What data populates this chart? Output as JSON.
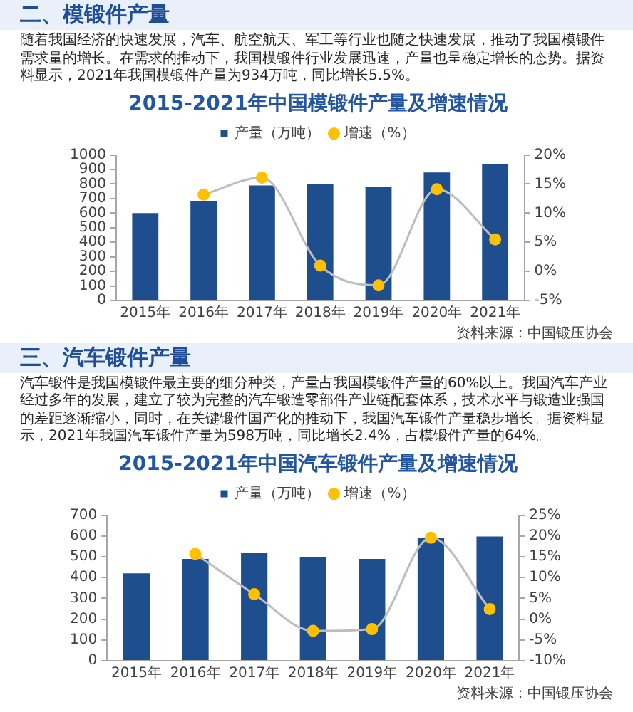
{
  "chart_data": [
    {
      "type": "bar",
      "title": "2015-2021年中国模锻件产量及增速情况",
      "annotations": [
        "二、模锻件产量",
        "随着我国经济的快速发展，汽车、航空航天、军工等行业也随之快速发展，推动了我国模锻件需求量的增长。在需求的推动下，我国模锻件行业发展迅速，产量也呈稳定增长的态势。据资料显示，2021年我国模锻件产量为934万吨，同比增长5.5%。",
        "资料来源：中国锻压协会"
      ],
      "categories": [
        "2015年",
        "2016年",
        "2017年",
        "2018年",
        "2019年",
        "2020年",
        "2021年"
      ],
      "series": [
        {
          "name": "产量（万吨）",
          "color": "#1f4e8e",
          "values": [
            600,
            680,
            790,
            800,
            780,
            880,
            934
          ]
        },
        {
          "name": "增速（%）",
          "type": "line",
          "axis": "y2",
          "color": "#ffc000",
          "values": [
            null,
            13.2,
            16.1,
            1.0,
            -2.4,
            14.1,
            5.5
          ]
        }
      ],
      "ylim": [
        0,
        1000
      ],
      "yticks": [
        0,
        100,
        200,
        300,
        400,
        500,
        600,
        700,
        800,
        900,
        1000
      ],
      "y2lim": [
        -5,
        20
      ],
      "y2ticks": [
        {
          "value": -5,
          "label": "-5%"
        },
        {
          "value": 0,
          "label": "0%"
        },
        {
          "value": 5,
          "label": "5%"
        },
        {
          "value": 10,
          "label": "10%"
        },
        {
          "value": 15,
          "label": "15%"
        },
        {
          "value": 20,
          "label": "20%"
        }
      ],
      "grid": false,
      "legend": "top",
      "marker": "circle"
    },
    {
      "type": "bar",
      "title": "2015-2021年中国汽车锻件产量及增速情况",
      "annotations": [
        "三、汽车锻件产量",
        "汽车锻件是我国模锻件最主要的细分种类，产量占我国模锻件产量的60%以上。我国汽车产业经过多年的发展，建立了较为完整的汽车锻造零部件产业链配套体系，技术水平与锻造业强国的差距逐渐缩小，同时，在关键锻件国产化的推动下，我国汽车锻件产量稳步增长。据资料显示，2021年我国汽车锻件产量为598万吨，同比增长2.4%，占模锻件产量的64%。",
        "资料来源：中国锻压协会"
      ],
      "categories": [
        "2015年",
        "2016年",
        "2017年",
        "2018年",
        "2019年",
        "2020年",
        "2021年"
      ],
      "series": [
        {
          "name": "产量（万吨）",
          "color": "#1f4e8e",
          "values": [
            420,
            490,
            520,
            500,
            490,
            590,
            598
          ]
        },
        {
          "name": "增速（%）",
          "type": "line",
          "axis": "y2",
          "color": "#ffc000",
          "values": [
            null,
            15.7,
            6.0,
            -2.8,
            -2.4,
            19.6,
            2.4
          ]
        }
      ],
      "ylim": [
        0,
        700
      ],
      "yticks": [
        0,
        100,
        200,
        300,
        400,
        500,
        600,
        700
      ],
      "y2lim": [
        -10,
        25
      ],
      "y2ticks": [
        {
          "value": -10,
          "label": "-10%"
        },
        {
          "value": -5,
          "label": "-5%"
        },
        {
          "value": 0,
          "label": "0%"
        },
        {
          "value": 5,
          "label": "5%"
        },
        {
          "value": 10,
          "label": "10%"
        },
        {
          "value": 15,
          "label": "15%"
        },
        {
          "value": 20,
          "label": "20%"
        },
        {
          "value": 25,
          "label": "25%"
        }
      ],
      "grid": false,
      "legend": "top",
      "marker": "circle"
    }
  ]
}
